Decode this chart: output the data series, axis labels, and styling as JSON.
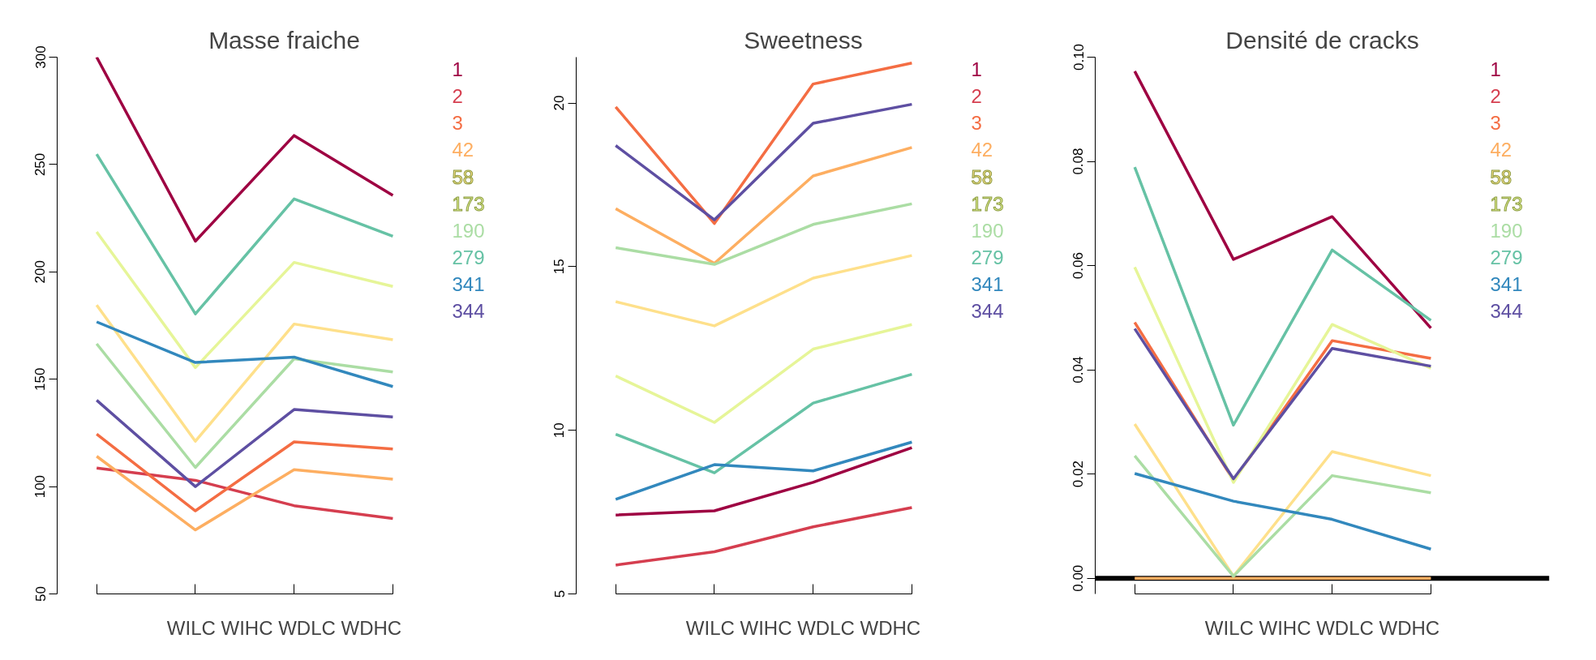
{
  "chart_data": [
    {
      "type": "line",
      "title": "Masse fraiche",
      "xlabel": "WILC WIHC WDLC WDHC",
      "categories": [
        null,
        null,
        null,
        null
      ],
      "ylim": [
        50,
        300
      ],
      "yticks": [
        50,
        100,
        150,
        200,
        250,
        300
      ],
      "grid": false,
      "tick_labels": "y",
      "series": [
        {
          "name": "1",
          "color": "#9e0142",
          "values": [
            300,
            214.3,
            263.5,
            235.6
          ]
        },
        {
          "name": "2",
          "color": "#d53e4f",
          "values": [
            108.6,
            102.9,
            91.1,
            85.1
          ]
        },
        {
          "name": "3",
          "color": "#f46d43",
          "values": [
            124.4,
            88.7,
            120.8,
            117.5
          ]
        },
        {
          "name": "42",
          "color": "#fdae61",
          "values": [
            114.1,
            79.8,
            107.9,
            103.4
          ]
        },
        {
          "name": "58",
          "color": "#fee08b",
          "values": [
            184.5,
            121.1,
            175.7,
            168.4
          ]
        },
        {
          "name": "173",
          "color": "#e6f598",
          "values": [
            218.6,
            155.4,
            204.4,
            193.2
          ]
        },
        {
          "name": "190",
          "color": "#abdda4",
          "values": [
            166.5,
            108.9,
            159.5,
            153.4
          ]
        },
        {
          "name": "279",
          "color": "#66c2a5",
          "values": [
            254.8,
            180.4,
            234.0,
            216.6
          ]
        },
        {
          "name": "341",
          "color": "#3288bd",
          "values": [
            176.7,
            157.8,
            160.3,
            146.6
          ]
        },
        {
          "name": "344",
          "color": "#5e4fa2",
          "values": [
            140.2,
            100.0,
            135.9,
            132.4
          ]
        }
      ]
    },
    {
      "type": "line",
      "title": "Sweetness",
      "xlabel": "WILC WIHC WDLC WDHC",
      "categories": [
        null,
        null,
        null,
        null
      ],
      "ylim": [
        5,
        21.4
      ],
      "yticks": [
        5,
        10,
        15,
        20
      ],
      "grid": false,
      "tick_labels": "y",
      "series": [
        {
          "name": "1",
          "color": "#9e0142",
          "values": [
            7.41,
            7.54,
            8.41,
            9.47
          ]
        },
        {
          "name": "2",
          "color": "#d53e4f",
          "values": [
            5.88,
            6.29,
            7.05,
            7.64
          ]
        },
        {
          "name": "3",
          "color": "#f46d43",
          "values": [
            19.88,
            16.32,
            20.58,
            21.22
          ]
        },
        {
          "name": "42",
          "color": "#fdae61",
          "values": [
            16.77,
            15.1,
            17.77,
            18.64
          ]
        },
        {
          "name": "58",
          "color": "#fee08b",
          "values": [
            13.93,
            13.19,
            14.65,
            15.34
          ]
        },
        {
          "name": "173",
          "color": "#e6f598",
          "values": [
            11.66,
            10.24,
            12.48,
            13.23
          ]
        },
        {
          "name": "190",
          "color": "#abdda4",
          "values": [
            15.58,
            15.07,
            16.29,
            16.92
          ]
        },
        {
          "name": "279",
          "color": "#66c2a5",
          "values": [
            9.88,
            8.7,
            10.83,
            11.71
          ]
        },
        {
          "name": "341",
          "color": "#3288bd",
          "values": [
            7.89,
            8.95,
            8.76,
            9.64
          ]
        },
        {
          "name": "344",
          "color": "#5e4fa2",
          "values": [
            18.7,
            16.43,
            19.38,
            19.96
          ]
        }
      ]
    },
    {
      "type": "line",
      "title": "Densité de cracks",
      "xlabel": "WILC WIHC WDLC WDHC",
      "categories": [
        null,
        null,
        null,
        null
      ],
      "ylim": [
        -0.003,
        0.1
      ],
      "yticks": [
        {
          "value": 0,
          "label": "0.00"
        },
        {
          "value": 0.02,
          "label": "0.02"
        },
        {
          "value": 0.04,
          "label": "0.04"
        },
        {
          "value": 0.06,
          "label": "0.06"
        },
        {
          "value": 0.08,
          "label": "0.08"
        },
        {
          "value": 0.1,
          "label": "0.10"
        }
      ],
      "grid": false,
      "tick_labels": "y",
      "ref_lines": [
        {
          "axis": "y",
          "value": 0,
          "color": "#000000"
        }
      ],
      "series": [
        {
          "name": "1",
          "color": "#9e0142",
          "values": [
            0.0973,
            0.0612,
            0.0694,
            0.048
          ]
        },
        {
          "name": "2",
          "color": "#d53e4f",
          "values": [
            null,
            null,
            null,
            null
          ]
        },
        {
          "name": "3",
          "color": "#f46d43",
          "values": [
            0.0491,
            0.0188,
            0.0456,
            0.0422
          ]
        },
        {
          "name": "42",
          "color": "#fdae61",
          "values": [
            0,
            0,
            0,
            0
          ]
        },
        {
          "name": "58",
          "color": "#fee08b",
          "values": [
            0.0296,
            0.0004,
            0.0243,
            0.0197
          ]
        },
        {
          "name": "173",
          "color": "#e6f598",
          "values": [
            0.0597,
            0.0184,
            0.0487,
            0.0403
          ]
        },
        {
          "name": "190",
          "color": "#abdda4",
          "values": [
            0.0235,
            0.0004,
            0.0197,
            0.0164
          ]
        },
        {
          "name": "279",
          "color": "#66c2a5",
          "values": [
            0.0789,
            0.0294,
            0.063,
            0.0495
          ]
        },
        {
          "name": "341",
          "color": "#3288bd",
          "values": [
            0.0201,
            0.0148,
            0.0113,
            0.0056
          ]
        },
        {
          "name": "344",
          "color": "#5e4fa2",
          "values": [
            0.0479,
            0.0191,
            0.0441,
            0.0407
          ]
        }
      ]
    }
  ]
}
